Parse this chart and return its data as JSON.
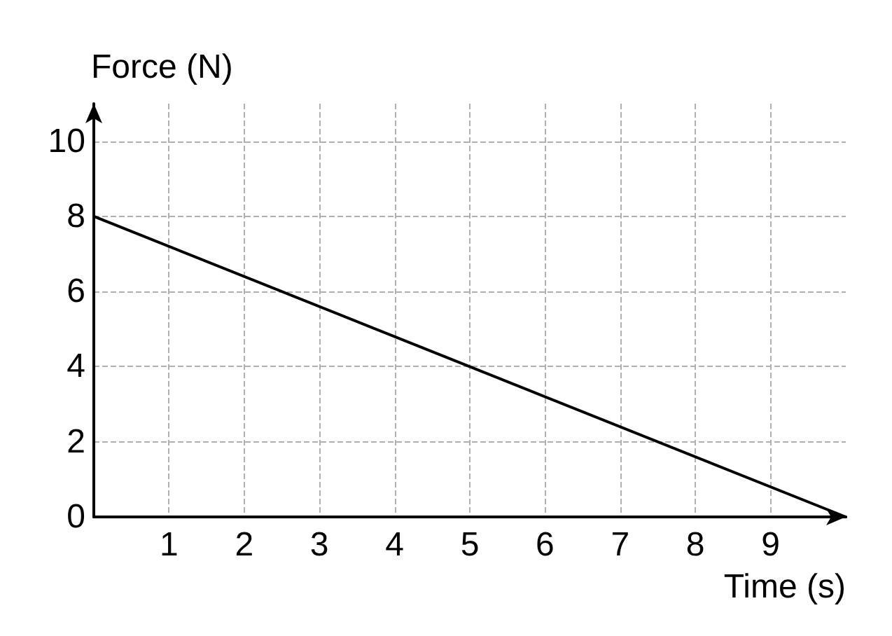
{
  "chart_data": {
    "type": "line",
    "xlabel": "Time (s)",
    "ylabel": "Force (N)",
    "x": [
      0,
      10
    ],
    "values": [
      8,
      0
    ],
    "color": "#000000",
    "xlim": [
      0,
      10
    ],
    "ylim": [
      0,
      11
    ],
    "xticks": [
      1,
      2,
      3,
      4,
      5,
      6,
      7,
      8,
      9
    ],
    "yticks": [
      0,
      2,
      4,
      6,
      8,
      10
    ],
    "grid": true,
    "marker": "none",
    "line_style": "solid"
  }
}
